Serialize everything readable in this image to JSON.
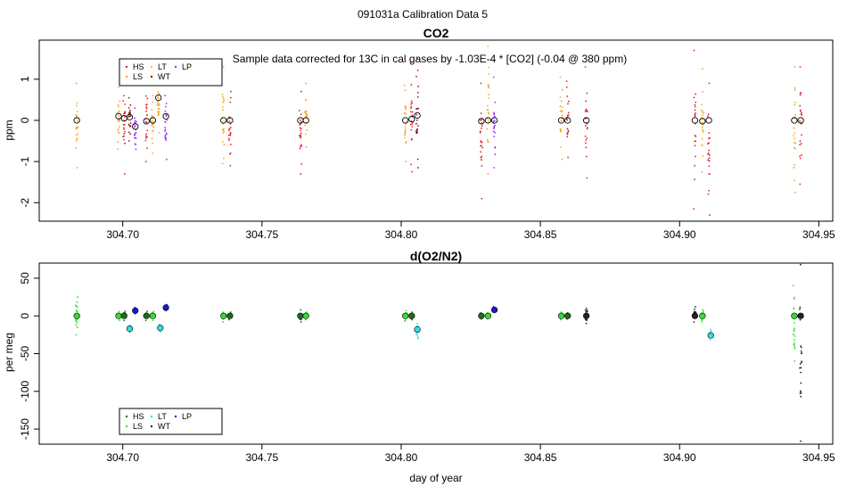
{
  "page_title": "091031a   Calibration Data 5",
  "colors": {
    "HS": "#e0202a",
    "LS": "#f5a623",
    "LT": "#f0c040",
    "WT": "#8a1a1a",
    "LP": "#9b30ff",
    "o2_HS": "#1a6e1a",
    "o2_LS": "#33dd33",
    "o2_LT": "#33dddd",
    "o2_WT": "#222222",
    "o2_LP": "#1a1ad0"
  },
  "chart_data": [
    {
      "type": "scatter",
      "title": "CO2",
      "subtitle": "Sample data corrected for 13C in cal gases by -1.03E-4 * [CO2] (-0.04 @ 380 ppm)",
      "xlabel": "",
      "ylabel": "ppm",
      "xlim": [
        304.67,
        304.955
      ],
      "ylim": [
        -2.45,
        1.95
      ],
      "x_ticks": [
        304.7,
        304.75,
        304.8,
        304.85,
        304.9,
        304.95
      ],
      "x_tick_labels": [
        "304.70",
        "304.75",
        "304.80",
        "304.85",
        "304.90",
        "304.95"
      ],
      "y_ticks": [
        -2,
        -1,
        0,
        1
      ],
      "y_tick_labels": [
        "-2",
        "-1",
        "0",
        "1"
      ],
      "legend": {
        "position": "top-left",
        "entries": [
          {
            "label": "HS",
            "color_key": "HS"
          },
          {
            "label": "LS",
            "color_key": "LS"
          },
          {
            "label": "LT",
            "color_key": "LT"
          },
          {
            "label": "WT",
            "color_key": "WT"
          },
          {
            "label": "LP",
            "color_key": "LP"
          }
        ]
      },
      "clusters": [
        {
          "x": 304.6835,
          "series": "LS",
          "mean": 0.0,
          "min": -1.15,
          "max": 0.9
        },
        {
          "x": 304.6985,
          "series": "LS",
          "mean": 0.1,
          "min": -0.7,
          "max": 0.8
        },
        {
          "x": 304.7005,
          "series": "HS",
          "mean": 0.05,
          "min": -1.3,
          "max": 1.0
        },
        {
          "x": 304.7025,
          "series": "WT",
          "mean": 0.08,
          "min": -0.5,
          "max": 0.55
        },
        {
          "x": 304.7045,
          "series": "LP",
          "mean": -0.15,
          "min": -0.7,
          "max": 0.3
        },
        {
          "x": 304.7085,
          "series": "HS",
          "mean": -0.02,
          "min": -1.0,
          "max": 1.0
        },
        {
          "x": 304.7108,
          "series": "LS",
          "mean": 0.0,
          "min": -0.8,
          "max": 0.6
        },
        {
          "x": 304.7128,
          "series": "LS",
          "mean": 0.55,
          "min": -0.3,
          "max": 0.9
        },
        {
          "x": 304.7155,
          "series": "LP",
          "mean": 0.1,
          "min": -0.95,
          "max": 0.6
        },
        {
          "x": 304.7362,
          "series": "LS",
          "mean": 0.0,
          "min": -1.05,
          "max": 1.3
        },
        {
          "x": 304.7385,
          "series": "HS",
          "mean": 0.0,
          "min": -1.1,
          "max": 0.7
        },
        {
          "x": 304.7638,
          "series": "HS",
          "mean": 0.0,
          "min": -1.3,
          "max": 0.7
        },
        {
          "x": 304.7658,
          "series": "LS",
          "mean": 0.0,
          "min": -0.65,
          "max": 0.9
        },
        {
          "x": 304.8015,
          "series": "LS",
          "mean": 0.0,
          "min": -1.0,
          "max": 0.85
        },
        {
          "x": 304.8038,
          "series": "HS",
          "mean": 0.03,
          "min": -1.25,
          "max": 1.4
        },
        {
          "x": 304.8058,
          "series": "WT",
          "mean": 0.12,
          "min": -1.15,
          "max": 1.5
        },
        {
          "x": 304.8288,
          "series": "HS",
          "mean": -0.02,
          "min": -1.9,
          "max": 0.9
        },
        {
          "x": 304.8312,
          "series": "LS",
          "mean": 0.0,
          "min": -1.3,
          "max": 1.8
        },
        {
          "x": 304.8335,
          "series": "LP",
          "mean": 0.0,
          "min": -1.15,
          "max": 1.05
        },
        {
          "x": 304.8575,
          "series": "LS",
          "mean": 0.0,
          "min": -0.95,
          "max": 1.05
        },
        {
          "x": 304.8598,
          "series": "HS",
          "mean": 0.0,
          "min": -0.9,
          "max": 0.95
        },
        {
          "x": 304.8665,
          "series": "HS",
          "mean": 0.0,
          "min": -1.4,
          "max": 1.3
        },
        {
          "x": 304.9055,
          "series": "HS",
          "mean": 0.0,
          "min": -2.15,
          "max": 1.7
        },
        {
          "x": 304.9082,
          "series": "LS",
          "mean": -0.02,
          "min": -1.25,
          "max": 1.25
        },
        {
          "x": 304.9105,
          "series": "HS",
          "mean": 0.0,
          "min": -2.3,
          "max": 0.9
        },
        {
          "x": 304.9412,
          "series": "LS",
          "mean": 0.0,
          "min": -1.75,
          "max": 1.3
        },
        {
          "x": 304.9435,
          "series": "HS",
          "mean": 0.0,
          "min": -1.55,
          "max": 1.3
        }
      ]
    },
    {
      "type": "scatter",
      "title": "d(O2/N2)",
      "xlabel": "day of year",
      "ylabel": "per meg",
      "xlim": [
        304.67,
        304.955
      ],
      "ylim": [
        -170,
        70
      ],
      "x_ticks": [
        304.7,
        304.75,
        304.8,
        304.85,
        304.9,
        304.95
      ],
      "x_tick_labels": [
        "304.70",
        "304.75",
        "304.80",
        "304.85",
        "304.90",
        "304.95"
      ],
      "y_ticks": [
        -150,
        -100,
        -50,
        0,
        50
      ],
      "y_tick_labels": [
        "-150",
        "-100",
        "-50",
        "0",
        "50"
      ],
      "legend": {
        "position": "bottom-left",
        "entries": [
          {
            "label": "HS",
            "color_key": "o2_HS"
          },
          {
            "label": "LS",
            "color_key": "o2_LS"
          },
          {
            "label": "LT",
            "color_key": "o2_LT"
          },
          {
            "label": "WT",
            "color_key": "o2_WT"
          },
          {
            "label": "LP",
            "color_key": "o2_LP"
          }
        ]
      },
      "clusters": [
        {
          "x": 304.6835,
          "series": "LS",
          "mean": 0,
          "min": -25,
          "max": 25
        },
        {
          "x": 304.6985,
          "series": "LS",
          "mean": 0,
          "min": -6,
          "max": 6
        },
        {
          "x": 304.7005,
          "series": "HS",
          "mean": 0,
          "min": -6,
          "max": 6
        },
        {
          "x": 304.7025,
          "series": "LT",
          "mean": -17,
          "min": -22,
          "max": -12
        },
        {
          "x": 304.7045,
          "series": "LP",
          "mean": 7,
          "min": 3,
          "max": 11
        },
        {
          "x": 304.7085,
          "series": "HS",
          "mean": 0,
          "min": -6,
          "max": 6
        },
        {
          "x": 304.7108,
          "series": "LS",
          "mean": 0,
          "min": -6,
          "max": 6
        },
        {
          "x": 304.7135,
          "series": "LT",
          "mean": -16,
          "min": -21,
          "max": -11
        },
        {
          "x": 304.7155,
          "series": "LP",
          "mean": 11,
          "min": 7,
          "max": 15
        },
        {
          "x": 304.7362,
          "series": "LS",
          "mean": 0,
          "min": -8,
          "max": 5
        },
        {
          "x": 304.7385,
          "series": "HS",
          "mean": 0,
          "min": -5,
          "max": 5
        },
        {
          "x": 304.7638,
          "series": "HS",
          "mean": 0,
          "min": -8,
          "max": 8
        },
        {
          "x": 304.7658,
          "series": "LS",
          "mean": 0,
          "min": -5,
          "max": 5
        },
        {
          "x": 304.8015,
          "series": "LS",
          "mean": 0,
          "min": -7,
          "max": 7
        },
        {
          "x": 304.8038,
          "series": "HS",
          "mean": 0,
          "min": -5,
          "max": 5
        },
        {
          "x": 304.8058,
          "series": "LT",
          "mean": -18,
          "min": -30,
          "max": -10
        },
        {
          "x": 304.8288,
          "series": "HS",
          "mean": 0,
          "min": -4,
          "max": 4
        },
        {
          "x": 304.8312,
          "series": "LS",
          "mean": 0,
          "min": -4,
          "max": 4
        },
        {
          "x": 304.8335,
          "series": "LP",
          "mean": 8,
          "min": 5,
          "max": 12
        },
        {
          "x": 304.8575,
          "series": "LS",
          "mean": 0,
          "min": -5,
          "max": 5
        },
        {
          "x": 304.8598,
          "series": "HS",
          "mean": 0,
          "min": -4,
          "max": 4
        },
        {
          "x": 304.8665,
          "series": "WT",
          "mean": 0,
          "min": -10,
          "max": 10
        },
        {
          "x": 304.9055,
          "series": "WT",
          "mean": 0,
          "min": -8,
          "max": 12
        },
        {
          "x": 304.9082,
          "series": "LS",
          "mean": 0,
          "min": -8,
          "max": 8
        },
        {
          "x": 304.9112,
          "series": "LT",
          "mean": -26,
          "min": -32,
          "max": -18
        },
        {
          "x": 304.9412,
          "series": "LS",
          "mean": 0,
          "min": -60,
          "max": 40
        },
        {
          "x": 304.9435,
          "series": "WT",
          "mean": 0,
          "min": -166,
          "max": 68
        }
      ]
    }
  ]
}
